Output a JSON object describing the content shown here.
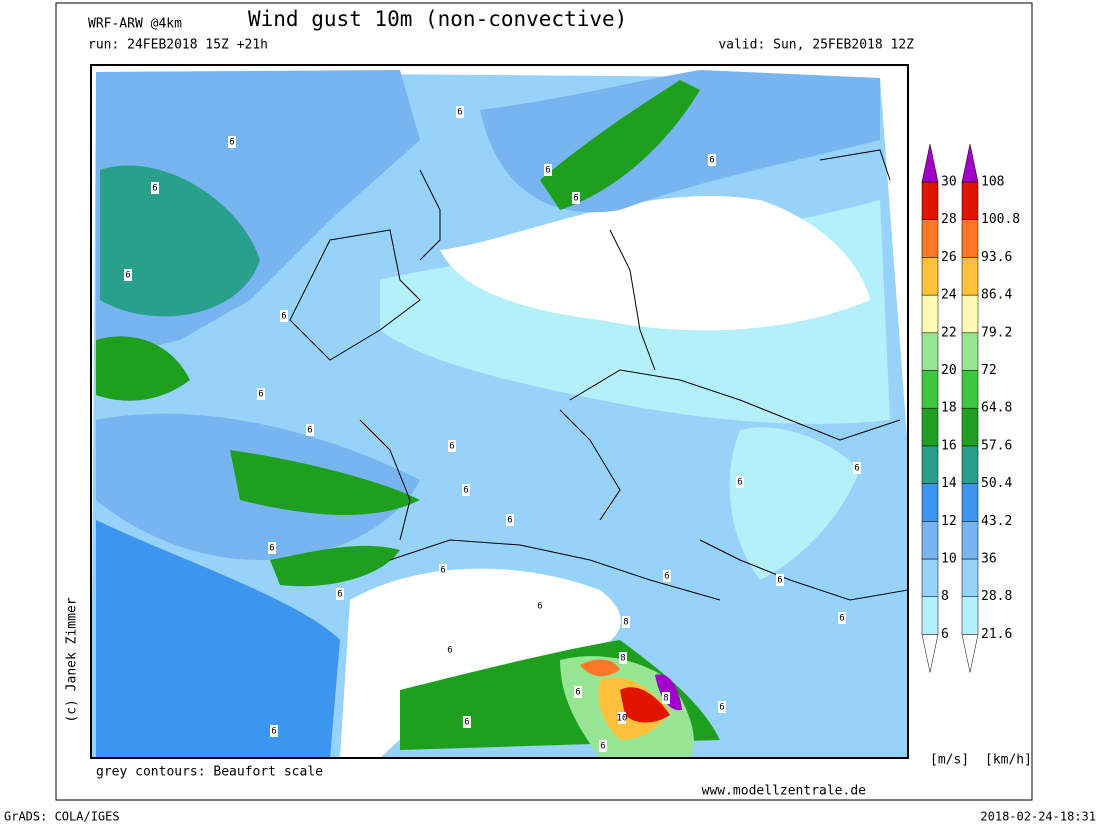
{
  "header": {
    "model": "WRF-ARW @4km",
    "title": "Wind gust 10m (non-convective)",
    "run": "run: 24FEB2018 15Z +21h",
    "valid": "valid: Sun, 25FEB2018 12Z"
  },
  "map": {
    "contour_labels": [
      "6",
      "6",
      "6",
      "6",
      "6",
      "6",
      "6",
      "6",
      "6",
      "6",
      "6",
      "6",
      "6",
      "6",
      "6",
      "6",
      "6",
      "6",
      "6",
      "6",
      "6",
      "6",
      "6",
      "6",
      "6",
      "6",
      "6",
      "6",
      "8",
      "8",
      "8",
      "10"
    ],
    "credit": "(c) Janek Zimmer",
    "note": "grey contours: Beaufort scale",
    "website": "www.modellzentrale.de"
  },
  "legend": {
    "ms_ticks": [
      6,
      8,
      10,
      12,
      14,
      16,
      18,
      20,
      22,
      24,
      26,
      28,
      30
    ],
    "kmh_ticks": [
      21.6,
      28.8,
      36,
      43.2,
      50.4,
      57.6,
      64.8,
      72,
      79.2,
      86.4,
      93.6,
      100.8,
      108
    ],
    "colors": [
      "#b4f0fa",
      "#96d2fa",
      "#78b4f0",
      "#3c96f0",
      "#28a08c",
      "#1ea01e",
      "#3cc83c",
      "#96e696",
      "#fffab4",
      "#ffc03c",
      "#ff7828",
      "#e11400",
      "#a50000"
    ],
    "over_color": "#a000c8",
    "units_ms": "[m/s]",
    "units_kmh": "[km/h]"
  },
  "footer": {
    "left": "GrADS: COLA/IGES",
    "right": "2018-02-24-18:31"
  }
}
